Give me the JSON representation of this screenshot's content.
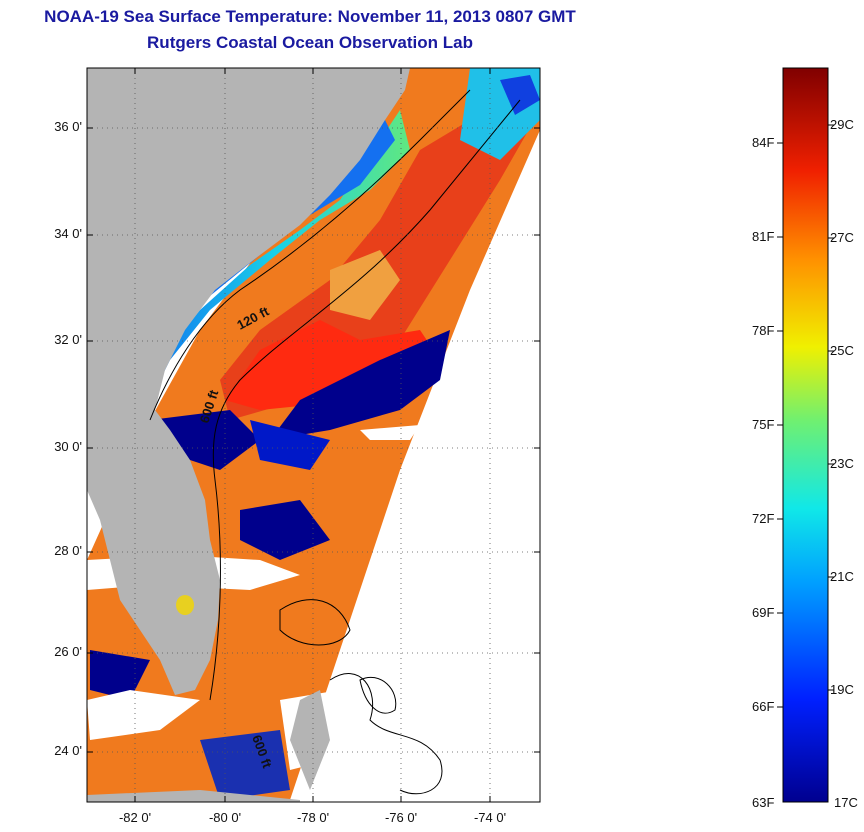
{
  "title": "NOAA-19 Sea Surface Temperature:  November 11, 2013 0807 GMT",
  "subtitle": "Rutgers Coastal Ocean Observation Lab",
  "lat_ticks": [
    "36 0'",
    "34 0'",
    "32 0'",
    "30 0'",
    "28 0'",
    "26 0'",
    "24 0'"
  ],
  "lon_ticks": [
    "-82 0'",
    "-80 0'",
    "-78 0'",
    "-76 0'",
    "-74 0'"
  ],
  "contour_labels": {
    "c120": "120 ft",
    "c600a": "600 ft",
    "c600b": "600 ft"
  },
  "colorbar": {
    "fahrenheit": [
      "84F",
      "81F",
      "78F",
      "75F",
      "72F",
      "69F",
      "66F",
      "63F"
    ],
    "celsius": [
      "29C",
      "27C",
      "25C",
      "23C",
      "21C",
      "19C",
      "17C"
    ]
  },
  "colors": {
    "land": "#b4b4b4",
    "cloud": "#ffffff",
    "title": "#1a1aa0",
    "gulf_stream": "#e8401a",
    "shelf_cool": "#1a6ee8",
    "cloud_mask": "#00008c"
  }
}
